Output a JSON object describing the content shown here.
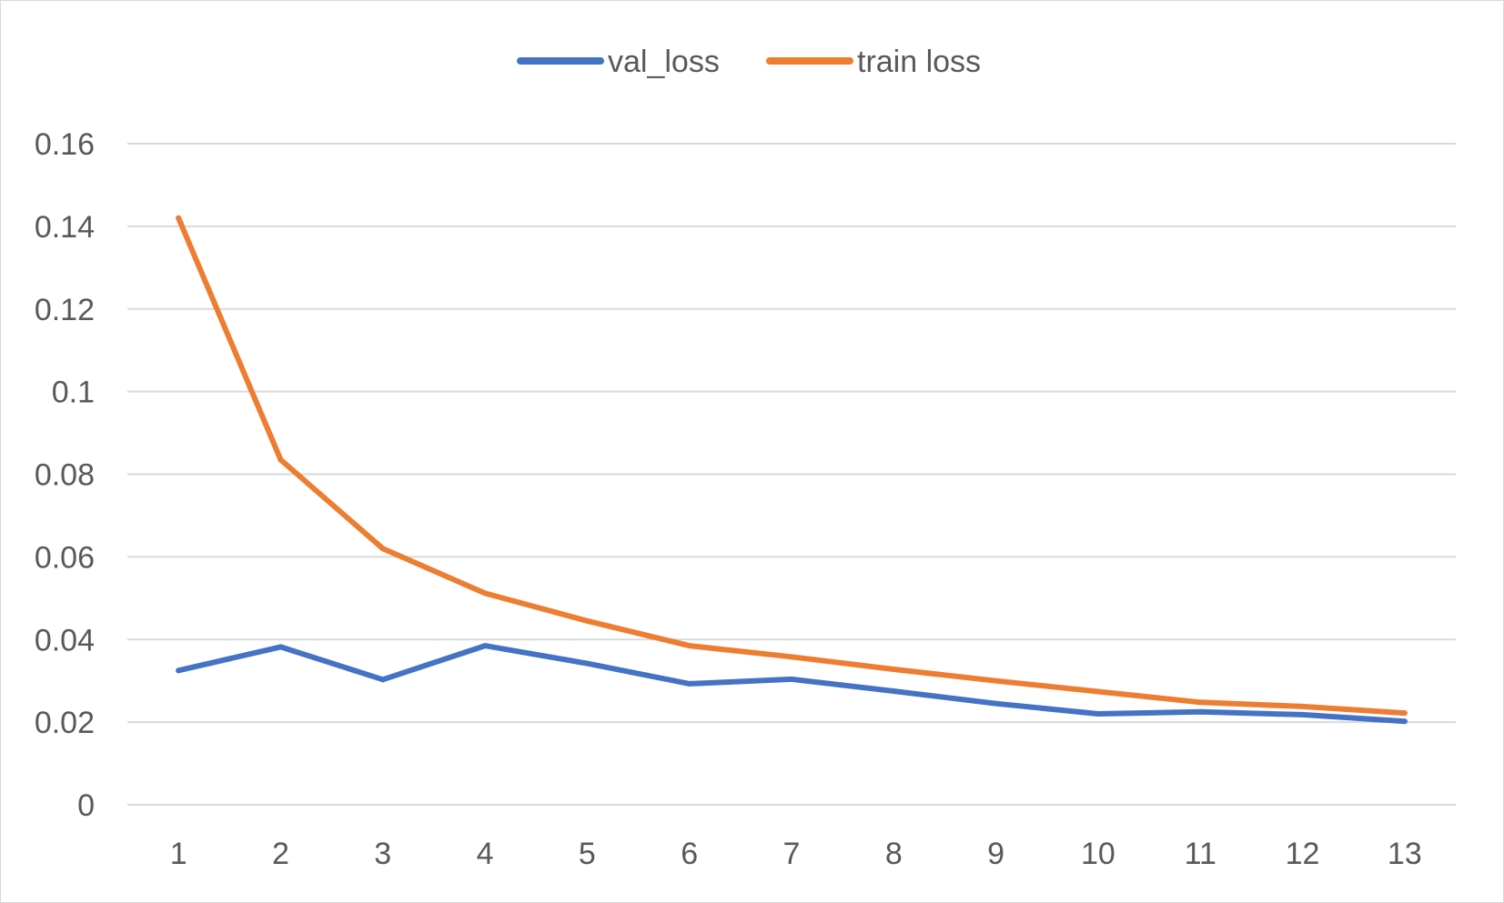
{
  "chart_data": {
    "type": "line",
    "title": "",
    "xlabel": "",
    "ylabel": "",
    "categories": [
      "1",
      "2",
      "3",
      "4",
      "5",
      "6",
      "7",
      "8",
      "9",
      "10",
      "11",
      "12",
      "13"
    ],
    "yticks": [
      "0",
      "0.02",
      "0.04",
      "0.06",
      "0.08",
      "0.1",
      "0.12",
      "0.14",
      "0.16"
    ],
    "ylim": [
      0,
      0.16
    ],
    "grid": true,
    "legend_position": "top",
    "series": [
      {
        "name": "val_loss",
        "color": "#4472C4",
        "values": [
          0.0325,
          0.0382,
          0.0303,
          0.0385,
          0.0342,
          0.0293,
          0.0304,
          0.0275,
          0.0245,
          0.022,
          0.0225,
          0.0218,
          0.0202
        ]
      },
      {
        "name": "train loss",
        "color": "#ED7D31",
        "values": [
          0.142,
          0.0835,
          0.062,
          0.0512,
          0.0445,
          0.0385,
          0.0358,
          0.0328,
          0.03,
          0.0274,
          0.0248,
          0.0238,
          0.0222
        ]
      }
    ]
  }
}
